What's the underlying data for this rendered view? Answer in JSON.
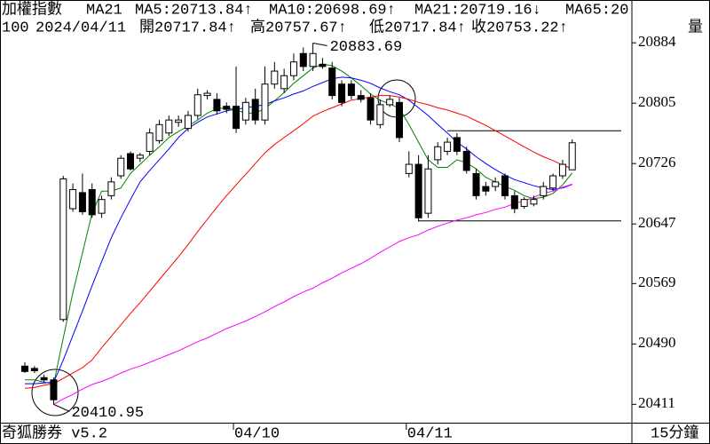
{
  "chart_data": {
    "type": "candlestick",
    "title": "加權指數",
    "indicator": "MA21",
    "info": [
      "100",
      "2024/04/11",
      "開20717.84↑",
      "高20757.67↑",
      "低20717.84↑",
      "收20753.22↑",
      "量"
    ],
    "footer": "奇狐勝券 v5.2",
    "period": "15分鐘",
    "categories": [
      null,
      null,
      null,
      null,
      null,
      null,
      null,
      null,
      null,
      null,
      null,
      null,
      null,
      null,
      null,
      null,
      null,
      null,
      null,
      null,
      null,
      null,
      "04/10",
      null,
      null,
      null,
      null,
      null,
      null,
      null,
      null,
      null,
      null,
      null,
      null,
      null,
      null,
      null,
      null,
      null,
      "04/11",
      null,
      null,
      null,
      null,
      null,
      null,
      null,
      null,
      null,
      null,
      null,
      null,
      null,
      null,
      null,
      null,
      null
    ],
    "open": [
      20461,
      20458,
      20446,
      20443,
      20522,
      20667,
      20688,
      20692,
      20661,
      20684,
      20710,
      20739,
      20733,
      20742,
      20756,
      20766,
      20780,
      20772,
      20789,
      20815,
      20810,
      20801,
      20801,
      20783,
      20810,
      20783,
      20830,
      20824,
      20841,
      20870,
      20853,
      20856,
      20851,
      20830,
      20830,
      20815,
      20812,
      20777,
      20803,
      20806,
      20713,
      20725,
      20661,
      20731,
      20742,
      20760,
      20742,
      20713,
      20696,
      20696,
      20710,
      20684,
      20670,
      20673,
      20684,
      20694,
      20710,
      20717.84
    ],
    "high": [
      20466,
      20461,
      20450,
      20446,
      20710,
      20700,
      20713,
      20700,
      20684,
      20708,
      20737,
      20742,
      20740,
      20772,
      20783,
      20789,
      20789,
      20795,
      20824,
      20822,
      20818,
      20806,
      20853,
      20812,
      20824,
      20853,
      20859,
      20850,
      20870,
      20878,
      20883.69,
      20864,
      20859,
      20835,
      20835,
      20822,
      20818,
      20810,
      20815,
      20812,
      20742,
      20737,
      20737,
      20754,
      20760,
      20766,
      20748,
      20719,
      20702,
      20708,
      20713,
      20690,
      20682,
      20684,
      20702,
      20713,
      20731,
      20757.67
    ],
    "low": [
      20452,
      20452,
      20440,
      20410.95,
      20519,
      20663,
      20659,
      20655,
      20655,
      20679,
      20706,
      20717,
      20728,
      20737,
      20752,
      20762,
      20774,
      20768,
      20784,
      20810,
      20790,
      20792,
      20766,
      20777,
      20777,
      20777,
      20824,
      20818,
      20835,
      20847,
      20847,
      20850,
      20810,
      20801,
      20810,
      20806,
      20777,
      20772,
      20800,
      20754,
      20708,
      20650,
      20655,
      20725,
      20737,
      20737,
      20713,
      20679,
      20684,
      20690,
      20679,
      20661,
      20667,
      20670,
      20679,
      20690,
      20706,
      20717.84
    ],
    "close": [
      20454,
      20455,
      20443,
      20417,
      20706,
      20692,
      20663,
      20659,
      20679,
      20702,
      20733,
      20719,
      20737,
      20766,
      20777,
      20783,
      20783,
      20789,
      20816,
      20818,
      20795,
      20797,
      20772,
      20806,
      20783,
      20830,
      20847,
      20841,
      20859,
      20853,
      20870,
      20853,
      20815,
      20806,
      20815,
      20810,
      20783,
      20803,
      20810,
      20760,
      20725,
      20655,
      20719,
      20748,
      20754,
      20742,
      20717,
      20684,
      20690,
      20702,
      20684,
      20667,
      20679,
      20679,
      20696,
      20710,
      20725,
      20753.22
    ],
    "up_color": "#ffffff",
    "down_color": "#000000",
    "series": [
      {
        "name": "MA5:20713.84↑",
        "color": "#008000",
        "values": [
          20443,
          20443,
          20440,
          20438,
          20498,
          20557,
          20609,
          20661,
          20690,
          20690,
          20694,
          20713,
          20725,
          20737,
          20748,
          20760,
          20768,
          20775,
          20783,
          20792,
          20798,
          20799,
          20796,
          20792,
          20792,
          20798,
          20808,
          20819,
          20831,
          20841,
          20851,
          20856,
          20854,
          20847,
          20838,
          20828,
          20817,
          20809,
          20804,
          20798,
          20777,
          20754,
          20731,
          20721,
          20721,
          20731,
          20727,
          20719,
          20708,
          20702,
          20696,
          20691,
          20684,
          20680,
          20682,
          20687,
          20698,
          20713.84
        ]
      },
      {
        "name": "MA10:20698.69↑",
        "color": "#0000ff",
        "values": [
          20438,
          20438,
          20439,
          20440,
          20469,
          20501,
          20533,
          20566,
          20598,
          20629,
          20655,
          20679,
          20702,
          20717,
          20731,
          20745,
          20760,
          20772,
          20780,
          20787,
          20791,
          20795,
          20797,
          20799,
          20801,
          20803,
          20808,
          20812,
          20817,
          20821,
          20827,
          20832,
          20837,
          20839,
          20838,
          20835,
          20831,
          20825,
          20820,
          20816,
          20809,
          20799,
          20789,
          20777,
          20766,
          20754,
          20745,
          20735,
          20726,
          20718,
          20711,
          20705,
          20701,
          20697,
          20694,
          20692,
          20694,
          20698.69
        ]
      },
      {
        "name": "MA21:20719.16↓",
        "color": "#ff0000",
        "values": [
          20432,
          20433,
          20436,
          20438,
          20445,
          20452,
          20459,
          20469,
          20485,
          20500,
          20515,
          20530,
          20544,
          20559,
          20574,
          20589,
          20604,
          20620,
          20637,
          20653,
          20669,
          20684,
          20698,
          20712,
          20726,
          20740,
          20751,
          20760,
          20769,
          20778,
          20788,
          20794,
          20799,
          20804,
          20809,
          20811,
          20813,
          20815,
          20815,
          20813,
          20810,
          20806,
          20803,
          20799,
          20796,
          20792,
          20788,
          20782,
          20776,
          20769,
          20762,
          20755,
          20748,
          20741,
          20735,
          20730,
          20724,
          20719.16
        ]
      },
      {
        "name": "MA65:20",
        "color": "#ff00ff",
        "values": [
          null,
          null,
          null,
          20411,
          20418,
          20424,
          20431,
          20437,
          20441,
          20446,
          20452,
          20457,
          20461,
          20466,
          20471,
          20476,
          20481,
          20487,
          20493,
          20498,
          20504,
          20510,
          20515,
          20520,
          20526,
          20532,
          20539,
          20545,
          20552,
          20558,
          20563,
          20570,
          20576,
          20583,
          20589,
          20595,
          20602,
          20610,
          20617,
          20624,
          20629,
          20633,
          20639,
          20644,
          20648,
          20652,
          20655,
          20659,
          20662,
          20666,
          20669,
          20674,
          20677,
          20682,
          20687,
          20690,
          20695,
          20699
        ]
      }
    ],
    "ylim": [
      20387,
      20940
    ],
    "yticks": [
      20884,
      20805,
      20726,
      20647,
      20569,
      20490,
      20411
    ],
    "hlines": [
      {
        "value": 20769,
        "from": 44
      },
      {
        "value": 20651,
        "from": 41
      }
    ]
  }
}
